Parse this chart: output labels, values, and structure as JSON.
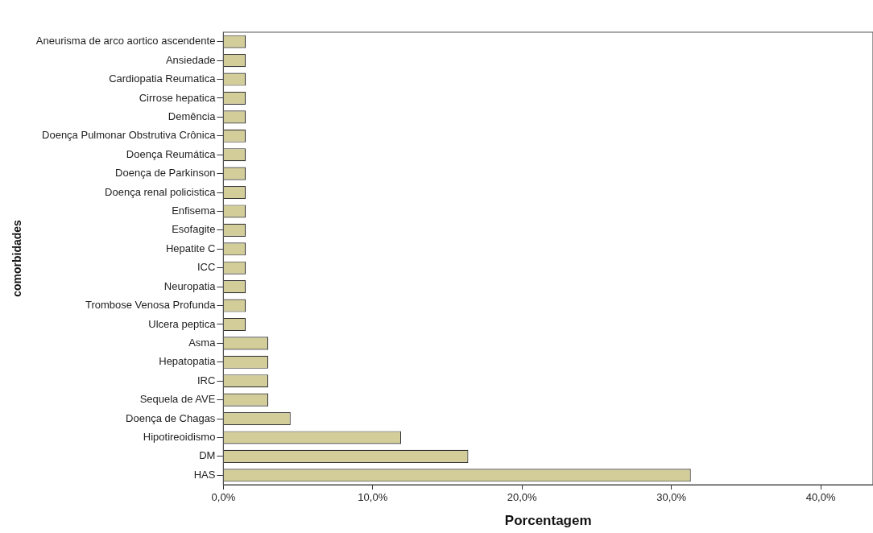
{
  "chart_data": {
    "type": "bar",
    "orientation": "horizontal",
    "xlabel": "Porcentagem",
    "ylabel": "comorbidades",
    "categories": [
      "Aneurisma de arco aortico ascendente",
      "Ansiedade",
      "Cardiopatia Reumatica",
      "Cirrose hepatica",
      "Demência",
      "Doença Pulmonar Obstrutiva Crônica",
      "Doença Reumática",
      "Doença de Parkinson",
      "Doença renal policistica",
      "Enfisema",
      "Esofagite",
      "Hepatite C",
      "ICC",
      "Neuropatia",
      "Trombose Venosa Profunda",
      "Ulcera peptica",
      "Asma",
      "Hepatopatia",
      "IRC",
      "Sequela de AVE",
      "Doença de Chagas",
      "Hipotireoidismo",
      "DM",
      "HAS"
    ],
    "values": [
      1.5,
      1.5,
      1.5,
      1.5,
      1.5,
      1.5,
      1.5,
      1.5,
      1.5,
      1.5,
      1.5,
      1.5,
      1.5,
      1.5,
      1.5,
      1.5,
      3.0,
      3.0,
      3.0,
      3.0,
      4.5,
      11.9,
      16.4,
      31.3
    ],
    "color": "#d3ce99",
    "xlim": [
      0,
      43.5
    ],
    "xticks": [
      {
        "value": 0,
        "label": "0,0%"
      },
      {
        "value": 10,
        "label": "10,0%"
      },
      {
        "value": 20,
        "label": "20,0%"
      },
      {
        "value": 30,
        "label": "30,0%"
      },
      {
        "value": 40,
        "label": "40,0%"
      }
    ],
    "grid": false,
    "legend": false
  }
}
